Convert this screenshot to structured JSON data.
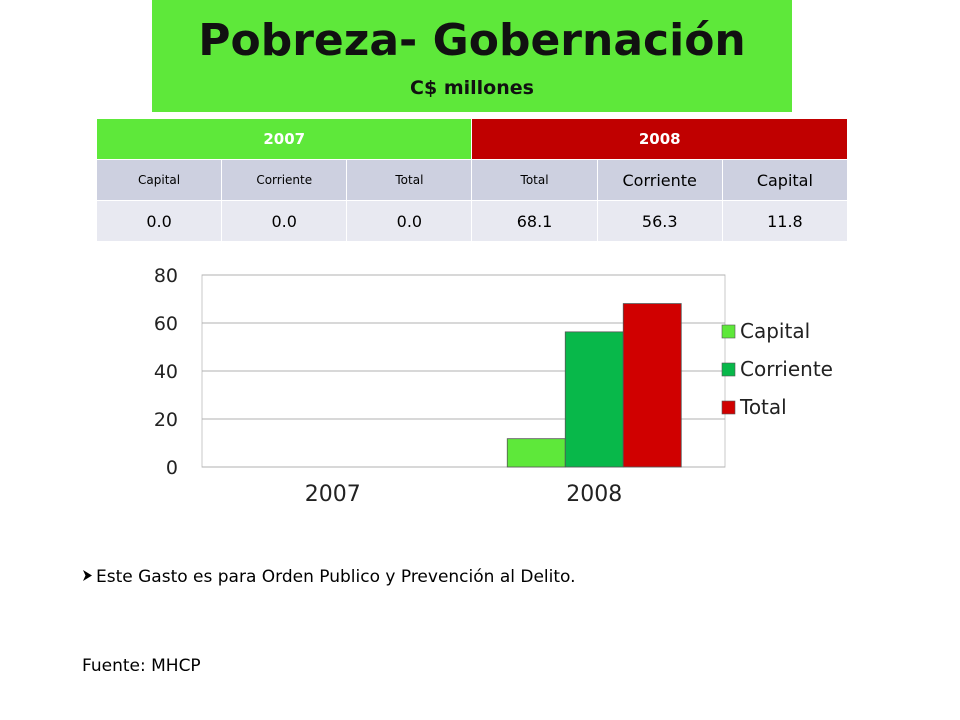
{
  "banner": {
    "title": "Pobreza- Gobernación",
    "subtitle": "C$ millones"
  },
  "table": {
    "year_2007": "2007",
    "year_2008": "2008",
    "headers": [
      "Capital",
      "Corriente",
      "Total",
      "Total",
      "Corriente",
      "Capital"
    ],
    "values": [
      "0.0",
      "0.0",
      "0.0",
      "68.1",
      "56.3",
      "11.8"
    ]
  },
  "chart_data": {
    "type": "bar",
    "categories": [
      "2007",
      "2008"
    ],
    "series": [
      {
        "name": "Capital",
        "values": [
          0,
          11.8
        ],
        "color": "#5ee83a"
      },
      {
        "name": "Corriente",
        "values": [
          0,
          56.3
        ],
        "color": "#08b84a"
      },
      {
        "name": "Total",
        "values": [
          0,
          68.1
        ],
        "color": "#d00000"
      }
    ],
    "ylim": [
      0,
      80
    ],
    "yticks": [
      "0",
      "20",
      "40",
      "60",
      "80"
    ],
    "grid": true,
    "legend": "right"
  },
  "notes": {
    "bullet": "Este Gasto es para Orden Publico y Prevención al Delito.",
    "source": "Fuente: MHCP"
  }
}
